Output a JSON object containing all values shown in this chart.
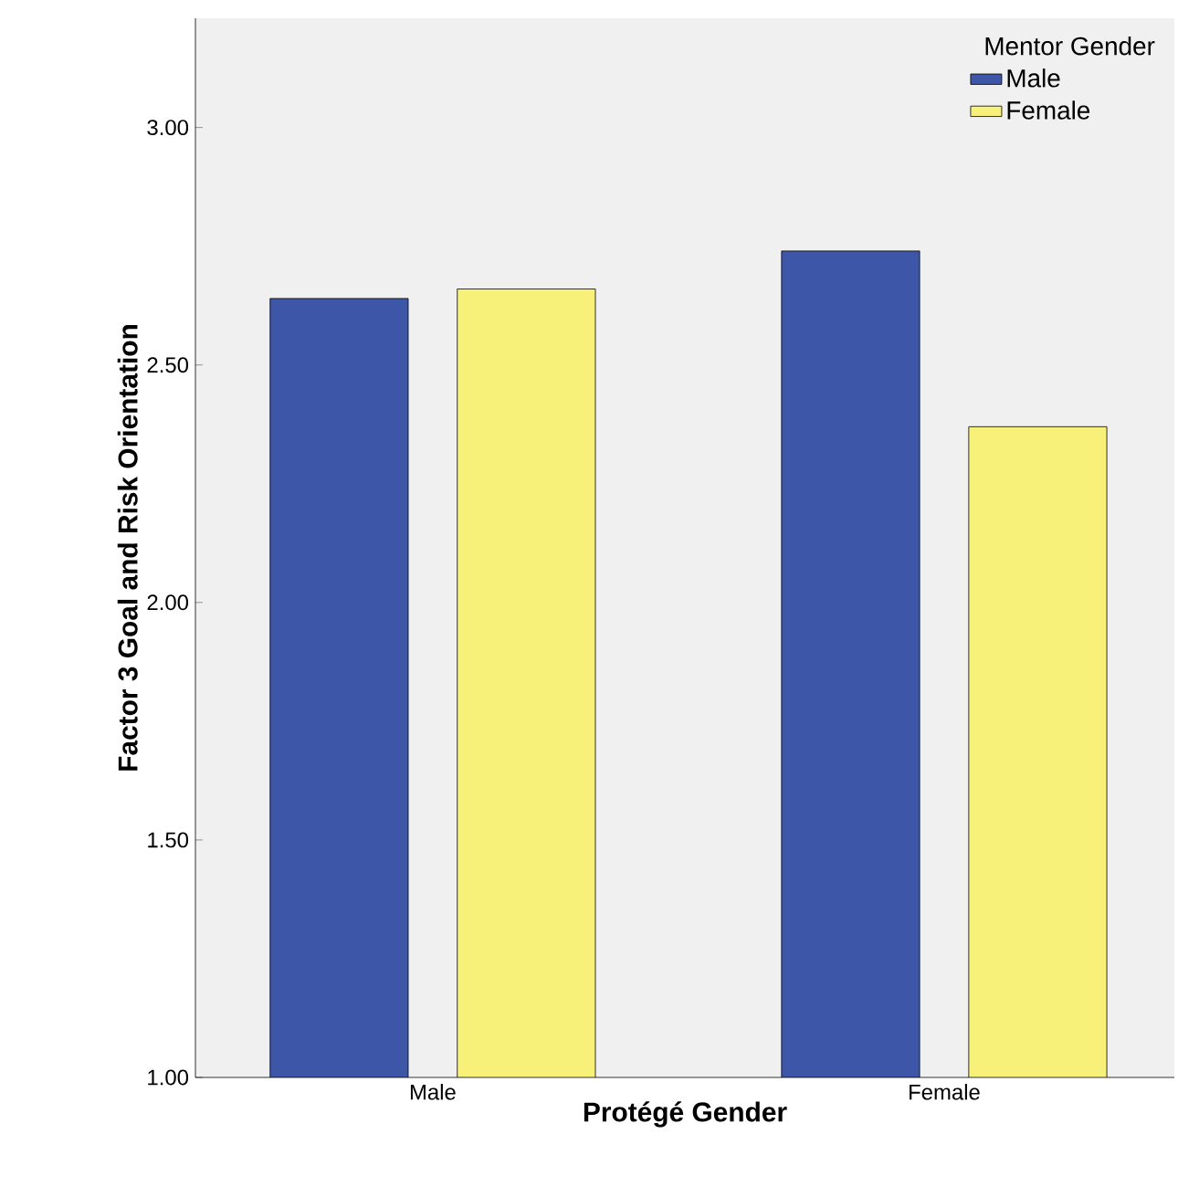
{
  "chart_data": {
    "type": "bar",
    "xlabel": "Protégé Gender",
    "ylabel": "Factor 3 Goal and Risk Orientation",
    "legend_title": "Mentor Gender",
    "categories": [
      "Male",
      "Female"
    ],
    "series": [
      {
        "name": "Male",
        "color": "#3d56a8",
        "values": [
          2.64,
          2.74
        ]
      },
      {
        "name": "Female",
        "color": "#f7f17a",
        "values": [
          2.66,
          2.37
        ]
      }
    ],
    "ylim": [
      1,
      3.23
    ],
    "yticks": [
      {
        "value": 1,
        "label": "1.00"
      },
      {
        "value": 1.5,
        "label": "1.50"
      },
      {
        "value": 2,
        "label": "2.00"
      },
      {
        "value": 2.5,
        "label": "2.50"
      },
      {
        "value": 3,
        "label": "3.00"
      }
    ],
    "grid": false,
    "legend": "top right"
  }
}
